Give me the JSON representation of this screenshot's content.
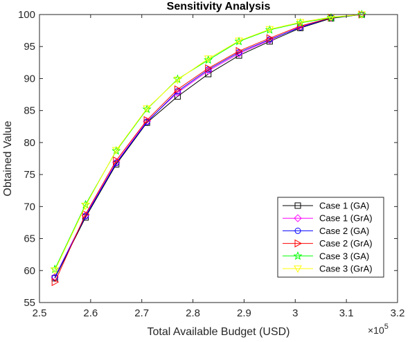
{
  "chart_data": {
    "type": "line",
    "title": "Sensitivity Analysis",
    "xlabel": "Total Available Budget (USD)",
    "ylabel": "Obtained Value",
    "x_exponent": {
      "base": "×10",
      "power": "5"
    },
    "xlim": [
      2.5,
      3.2
    ],
    "ylim": [
      55,
      100
    ],
    "xticks": [
      2.5,
      2.6,
      2.7,
      2.8,
      2.9,
      3.0,
      3.1,
      3.2
    ],
    "xtick_labels": [
      "2.5",
      "2.6",
      "2.7",
      "2.8",
      "2.9",
      "3",
      "3.1",
      "3.2"
    ],
    "yticks": [
      55,
      60,
      65,
      70,
      75,
      80,
      85,
      90,
      95,
      100
    ],
    "ytick_labels": [
      "55",
      "60",
      "65",
      "70",
      "75",
      "80",
      "85",
      "90",
      "95",
      "100"
    ],
    "grid": false,
    "legend_position": "lower-right",
    "x": [
      2.53,
      2.59,
      2.65,
      2.71,
      2.77,
      2.83,
      2.89,
      2.95,
      3.01,
      3.07,
      3.13
    ],
    "series": [
      {
        "name": "Case 1 (GA)",
        "color": "#000000",
        "marker": "square",
        "values": [
          58.8,
          68.3,
          76.6,
          83.1,
          87.2,
          90.7,
          93.6,
          95.8,
          97.9,
          99.4,
          100.0
        ]
      },
      {
        "name": "Case 1 (GrA)",
        "color": "#ff00ff",
        "marker": "diamond",
        "values": [
          59.0,
          68.6,
          76.9,
          83.3,
          87.8,
          91.2,
          93.9,
          96.0,
          98.1,
          99.5,
          100.0
        ]
      },
      {
        "name": "Case 2 (GA)",
        "color": "#0000ff",
        "marker": "circle",
        "values": [
          58.9,
          68.5,
          76.8,
          83.2,
          88.0,
          91.4,
          94.1,
          96.1,
          98.0,
          99.5,
          100.0
        ]
      },
      {
        "name": "Case 2 (GrA)",
        "color": "#ff0000",
        "marker": "triangle-right",
        "values": [
          58.2,
          68.8,
          77.2,
          83.5,
          88.3,
          91.6,
          94.3,
          96.3,
          98.2,
          99.5,
          100.0
        ]
      },
      {
        "name": "Case 3 (GA)",
        "color": "#00ff00",
        "marker": "star",
        "values": [
          60.2,
          70.3,
          78.7,
          85.2,
          89.9,
          92.9,
          95.8,
          97.6,
          98.7,
          99.5,
          100.0
        ]
      },
      {
        "name": "Case 3 (GrA)",
        "color": "#ffff00",
        "marker": "triangle-down",
        "values": [
          60.0,
          70.1,
          78.8,
          85.3,
          89.8,
          93.1,
          95.9,
          97.7,
          98.8,
          99.6,
          100.0
        ]
      }
    ]
  }
}
